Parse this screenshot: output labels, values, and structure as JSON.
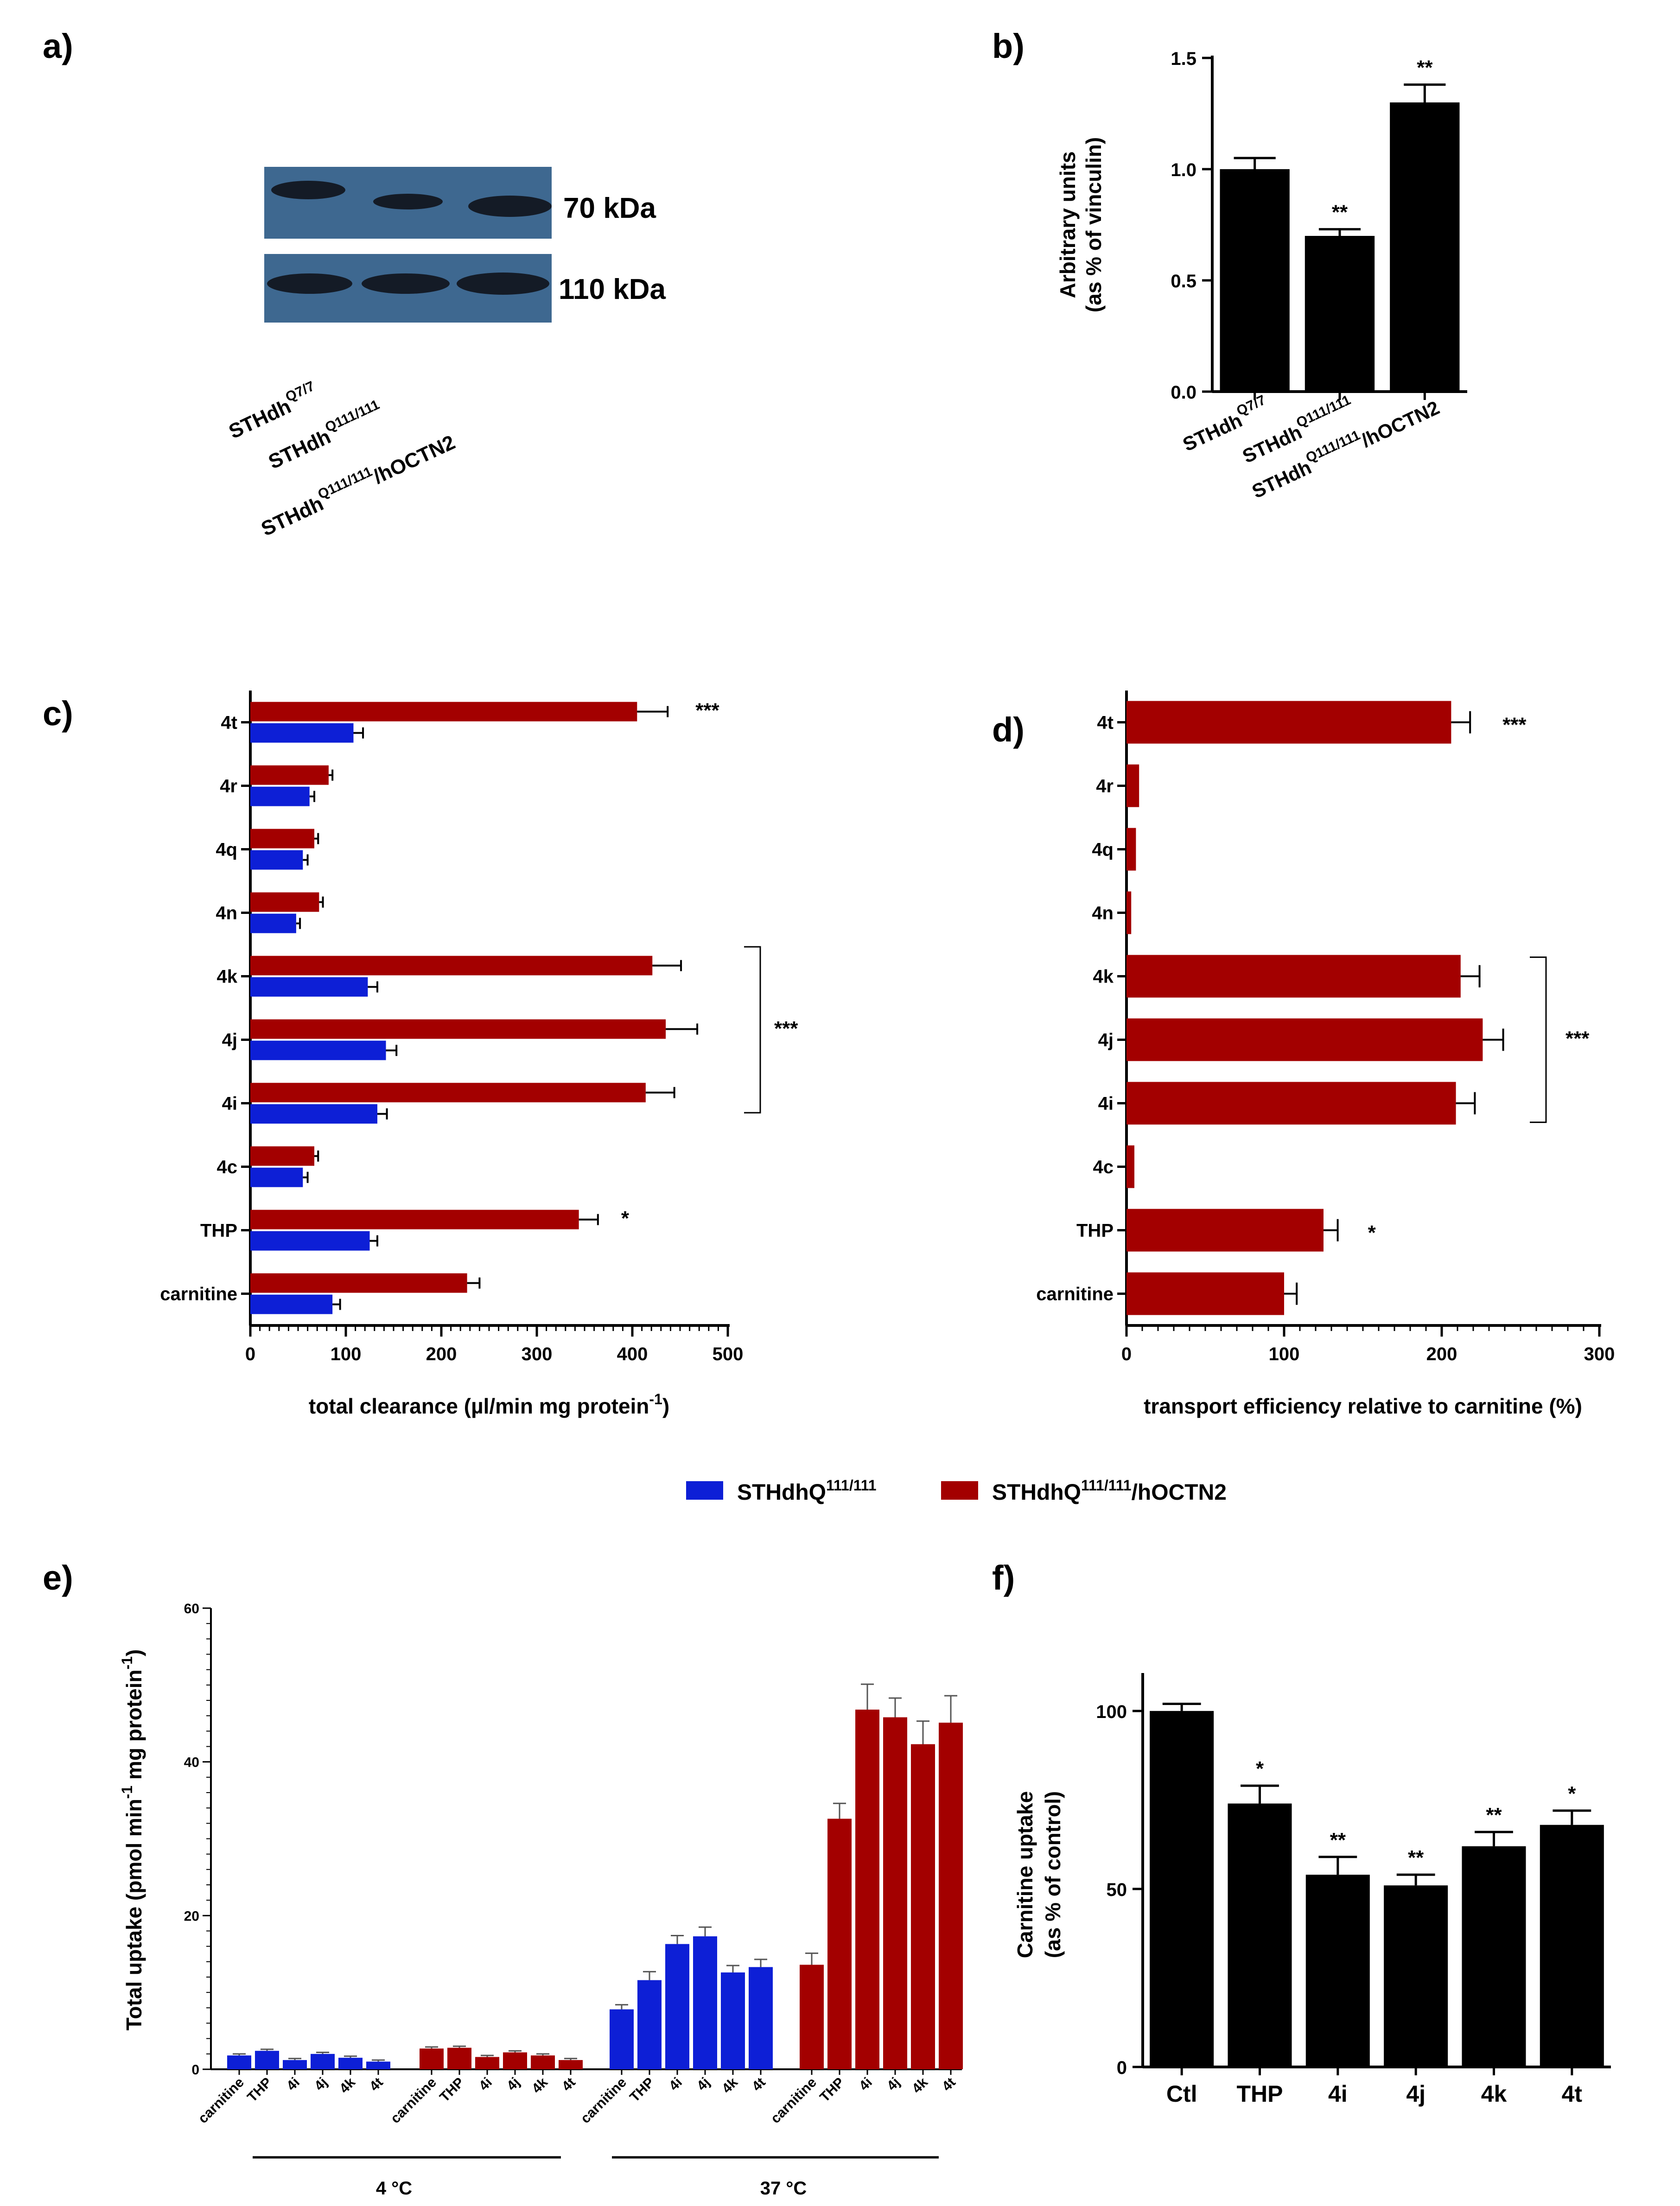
{
  "colors": {
    "blue": "#0d1fd6",
    "red": "#a30000",
    "black": "#000000",
    "blot_bg": "#3e6890",
    "blot_band": "#10151d"
  },
  "panels": {
    "a": "a)",
    "b": "b)",
    "c": "c)",
    "d": "d)",
    "e": "e)",
    "f": "f)"
  },
  "blot": {
    "band_upper_label": "70 kDa",
    "band_lower_label": "110 kDa",
    "lanes": [
      {
        "base": "STHdh",
        "sup": "Q7/7",
        "suffix": ""
      },
      {
        "base": "STHdh",
        "sup": "Q111/111",
        "suffix": ""
      },
      {
        "base": "STHdh",
        "sup": "Q111/111",
        "suffix": "/hOCTN2"
      }
    ]
  },
  "legend": {
    "blue": "STHdhQ",
    "blue_sup": "111/111",
    "red": "STHdhQ",
    "red_sup": "111/111",
    "red_suffix": "/hOCTN2"
  },
  "chart_data": [
    {
      "id": "b",
      "type": "bar",
      "ylabel_line1": "Arbitrary units",
      "ylabel_line2": "(as % of vinculin)",
      "ylim": [
        0,
        1.5
      ],
      "yticks": [
        "0.0",
        "0.5",
        "1.0",
        "1.5"
      ],
      "categories": [
        {
          "base": "STHdh",
          "sup": "Q7/7",
          "suffix": ""
        },
        {
          "base": "STHdh",
          "sup": "Q111/111",
          "suffix": ""
        },
        {
          "base": "STHdh",
          "sup": "Q111/111",
          "suffix": "/hOCTN2"
        }
      ],
      "values": [
        1.0,
        0.7,
        1.3
      ],
      "errors": [
        0.05,
        0.03,
        0.08
      ],
      "significance": [
        "",
        "**",
        "**"
      ]
    },
    {
      "id": "c",
      "type": "bar",
      "orientation": "horizontal",
      "xlabel": "total clearance (µl/min mg protein",
      "xlabel_sup": "-1",
      "xlabel_end": ")",
      "xlim": [
        0,
        500
      ],
      "xticks": [
        "0",
        "100",
        "200",
        "300",
        "400",
        "500"
      ],
      "categories": [
        "4t",
        "4r",
        "4q",
        "4n",
        "4k",
        "4j",
        "4i",
        "4c",
        "THP",
        "carnitine"
      ],
      "series": [
        {
          "name": "STHdhQ111/111/hOCTN2",
          "color": "red",
          "values": [
            405,
            82,
            67,
            72,
            421,
            435,
            414,
            67,
            344,
            227
          ],
          "errors": [
            32,
            4,
            4,
            4,
            30,
            33,
            30,
            4,
            20,
            13
          ]
        },
        {
          "name": "STHdhQ111/111",
          "color": "blue",
          "values": [
            108,
            62,
            55,
            48,
            123,
            142,
            133,
            55,
            125,
            86
          ],
          "errors": [
            10,
            5,
            5,
            4,
            10,
            11,
            10,
            5,
            8,
            8
          ]
        }
      ],
      "significance": [
        "***",
        "",
        "",
        "",
        "",
        "",
        "",
        "",
        "*",
        ""
      ],
      "group_bracket": {
        "categories": [
          "4k",
          "4j",
          "4i"
        ],
        "label": "***"
      }
    },
    {
      "id": "d",
      "type": "bar",
      "orientation": "horizontal",
      "xlabel": "transport efficiency relative to carnitine (%)",
      "xlim": [
        0,
        300
      ],
      "xticks": [
        "0",
        "100",
        "200",
        "300"
      ],
      "categories": [
        "4t",
        "4r",
        "4q",
        "4n",
        "4k",
        "4j",
        "4i",
        "4c",
        "THP",
        "carnitine"
      ],
      "values": [
        206,
        8,
        6,
        3,
        212,
        226,
        209,
        5,
        125,
        100
      ],
      "errors": [
        12,
        0,
        0,
        0,
        12,
        13,
        12,
        0,
        9,
        8
      ],
      "significance": [
        "***",
        "",
        "",
        "",
        "",
        "",
        "",
        "",
        "*",
        ""
      ],
      "group_bracket": {
        "categories": [
          "4k",
          "4j",
          "4i"
        ],
        "label": "***"
      }
    },
    {
      "id": "e",
      "type": "bar",
      "ylabel": "Total uptake (pmol min",
      "ylabel_sup1": "-1",
      "ylabel_mid": " mg protein",
      "ylabel_sup2": "-1",
      "ylabel_end": ")",
      "ylim": [
        0,
        60
      ],
      "yticks": [
        "0",
        "20",
        "40",
        "60"
      ],
      "categories": [
        "carnitine",
        "THP",
        "4i",
        "4j",
        "4k",
        "4t"
      ],
      "groups": [
        {
          "name": "4 °C blue",
          "color": "blue",
          "values": [
            1.8,
            2.4,
            1.2,
            2.0,
            1.5,
            1.0
          ],
          "errors": [
            0.2,
            0.2,
            0.2,
            0.2,
            0.2,
            0.2
          ]
        },
        {
          "name": "4 °C red",
          "color": "red",
          "values": [
            2.7,
            2.8,
            1.6,
            2.2,
            1.8,
            1.2
          ],
          "errors": [
            0.2,
            0.2,
            0.2,
            0.2,
            0.2,
            0.2
          ]
        },
        {
          "name": "37 °C blue",
          "color": "blue",
          "values": [
            7.8,
            11.6,
            16.3,
            17.3,
            12.6,
            13.3
          ],
          "errors": [
            0.6,
            1.1,
            1.1,
            1.2,
            0.9,
            1.0
          ]
        },
        {
          "name": "37 °C red",
          "color": "red",
          "values": [
            13.6,
            32.6,
            46.8,
            45.8,
            42.3,
            45.1
          ],
          "errors": [
            1.5,
            2.0,
            3.3,
            2.5,
            3.0,
            3.5
          ]
        }
      ],
      "temperature_labels": [
        "4 °C",
        "37 °C"
      ]
    },
    {
      "id": "f",
      "type": "bar",
      "ylabel_line1": "Carnitine uptake",
      "ylabel_line2": "(as % of control)",
      "ylim": [
        0,
        110
      ],
      "yticks": [
        "0",
        "50",
        "100"
      ],
      "categories": [
        "Ctl",
        "THP",
        "4i",
        "4j",
        "4k",
        "4t"
      ],
      "values": [
        100,
        74,
        54,
        51,
        62,
        68
      ],
      "errors": [
        2,
        5,
        5,
        3,
        4,
        4
      ],
      "significance": [
        "",
        "*",
        "**",
        "**",
        "**",
        "*"
      ]
    }
  ]
}
